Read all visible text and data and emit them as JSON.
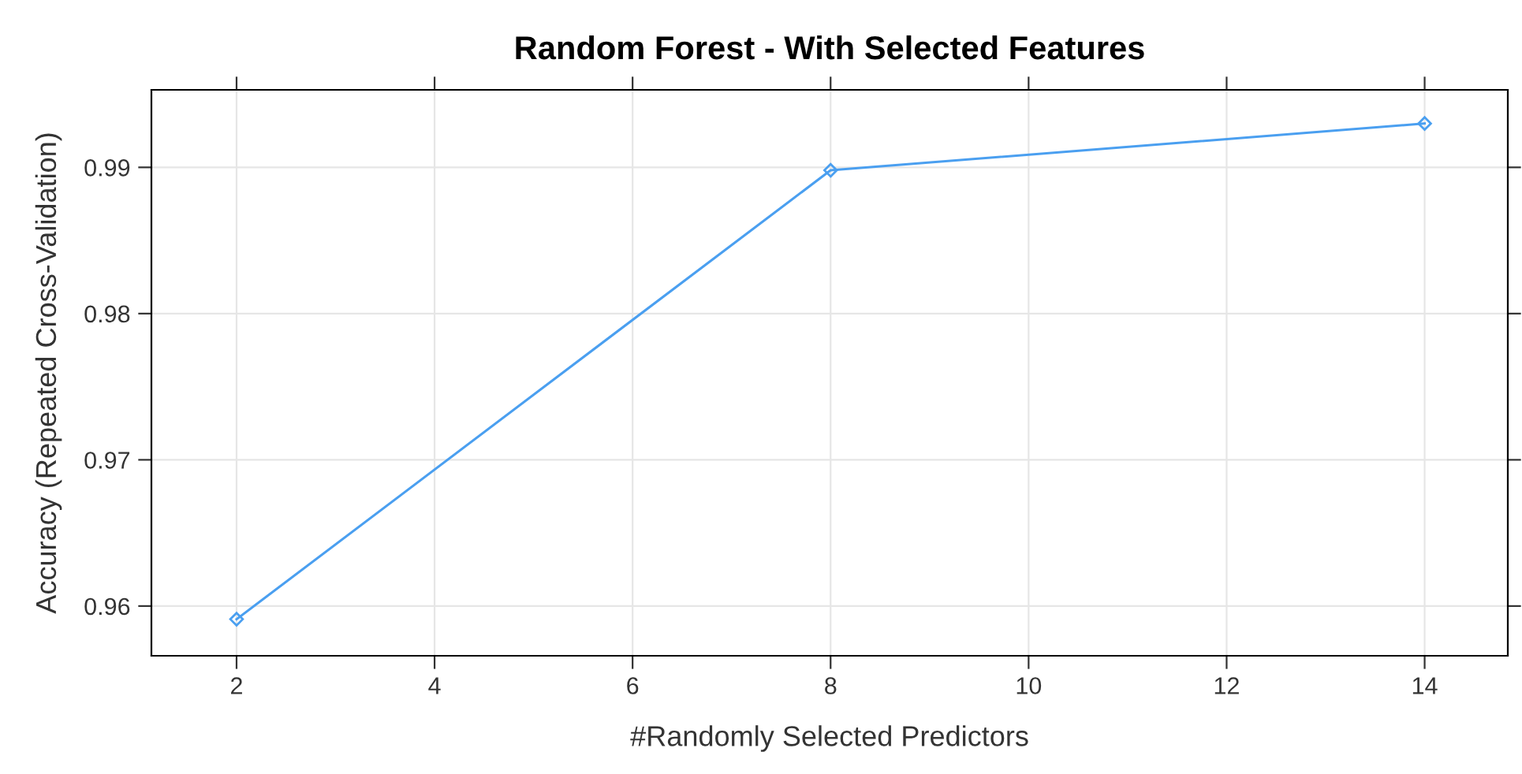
{
  "chart_data": {
    "type": "line",
    "title": "Random Forest - With Selected Features",
    "xlabel": "#Randomly Selected Predictors",
    "ylabel": "Accuracy (Repeated Cross-Validation)",
    "x": [
      2,
      8,
      14
    ],
    "series": [
      {
        "color": "#4a9ff0",
        "values": [
          0.9591,
          0.9898,
          0.993
        ]
      }
    ],
    "xlim": [
      1.14,
      14.84
    ],
    "ylim": [
      0.9566,
      0.9953
    ],
    "xticks": [
      2,
      4,
      6,
      8,
      10,
      12,
      14
    ],
    "yticks": [
      0.96,
      0.97,
      0.98,
      0.99
    ],
    "grid": true,
    "marker": "diamond",
    "line_style": "solid"
  }
}
